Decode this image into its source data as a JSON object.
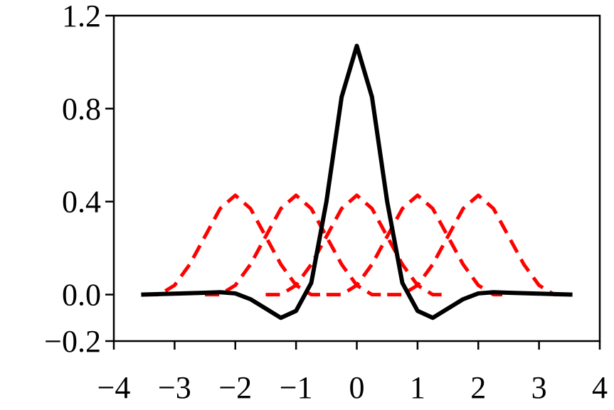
{
  "chart_data": {
    "type": "line",
    "xlim": [
      -4,
      4
    ],
    "ylim": [
      -0.2,
      1.2
    ],
    "xticks": [
      {
        "value": -4,
        "label": "−4"
      },
      {
        "value": -3,
        "label": "−3"
      },
      {
        "value": -2,
        "label": "−2"
      },
      {
        "value": -1,
        "label": "−1"
      },
      0,
      1,
      2,
      3,
      4
    ],
    "yticks": [
      {
        "value": -0.2,
        "label": "−0.2"
      },
      {
        "value": 0,
        "label": "0.0"
      },
      0.4,
      0.8,
      1.2
    ],
    "series": [
      {
        "color": "#ff0000",
        "dashed": true,
        "x": [
          -3.5,
          -3.25,
          -3,
          -2.75,
          -2.5,
          -2.25,
          -2,
          -1.75,
          -1.5,
          -1.25,
          -1,
          -0.75,
          -0.5
        ],
        "values": [
          0,
          0,
          0.04,
          0.13,
          0.25,
          0.37,
          0.427,
          0.37,
          0.25,
          0.13,
          0.04,
          0,
          0
        ]
      },
      {
        "color": "#ff0000",
        "dashed": true,
        "x": [
          -2.5,
          -2.25,
          -2,
          -1.75,
          -1.5,
          -1.25,
          -1,
          -0.75,
          -0.5,
          -0.25,
          0,
          0.25,
          0.5
        ],
        "values": [
          0,
          0,
          0.04,
          0.13,
          0.25,
          0.37,
          0.427,
          0.37,
          0.25,
          0.13,
          0.04,
          0,
          0
        ]
      },
      {
        "color": "#ff0000",
        "dashed": true,
        "x": [
          -1.5,
          -1.25,
          -1,
          -0.75,
          -0.5,
          -0.25,
          0,
          0.25,
          0.5,
          0.75,
          1,
          1.25,
          1.5
        ],
        "values": [
          0,
          0,
          0.04,
          0.13,
          0.25,
          0.37,
          0.427,
          0.37,
          0.25,
          0.13,
          0.04,
          0,
          0
        ]
      },
      {
        "color": "#ff0000",
        "dashed": true,
        "x": [
          -0.5,
          -0.25,
          0,
          0.25,
          0.5,
          0.75,
          1,
          1.25,
          1.5,
          1.75,
          2,
          2.25,
          2.5
        ],
        "values": [
          0,
          0,
          0.04,
          0.13,
          0.25,
          0.37,
          0.427,
          0.37,
          0.25,
          0.13,
          0.04,
          0,
          0
        ]
      },
      {
        "color": "#ff0000",
        "dashed": true,
        "x": [
          0.5,
          0.75,
          1,
          1.25,
          1.5,
          1.75,
          2,
          2.25,
          2.5,
          2.75,
          3,
          3.25,
          3.5
        ],
        "values": [
          0,
          0,
          0.04,
          0.13,
          0.25,
          0.37,
          0.427,
          0.37,
          0.25,
          0.13,
          0.04,
          0,
          0
        ]
      },
      {
        "color": "#000000",
        "dashed": false,
        "x": [
          -3.55,
          -3.25,
          -3,
          -2.75,
          -2.5,
          -2.25,
          -2,
          -1.75,
          -1.5,
          -1.25,
          -1,
          -0.75,
          -0.5,
          -0.25,
          0,
          0.25,
          0.5,
          0.75,
          1,
          1.25,
          1.5,
          1.75,
          2,
          2.25,
          2.5,
          2.75,
          3,
          3.25,
          3.55
        ],
        "values": [
          0,
          0.002,
          0.004,
          0.006,
          0.008,
          0.01,
          0.005,
          -0.02,
          -0.06,
          -0.1,
          -0.07,
          0.05,
          0.4,
          0.85,
          1.07,
          0.85,
          0.4,
          0.05,
          -0.07,
          -0.1,
          -0.06,
          -0.02,
          0.005,
          0.01,
          0.008,
          0.006,
          0.004,
          0.002,
          0
        ]
      }
    ]
  }
}
